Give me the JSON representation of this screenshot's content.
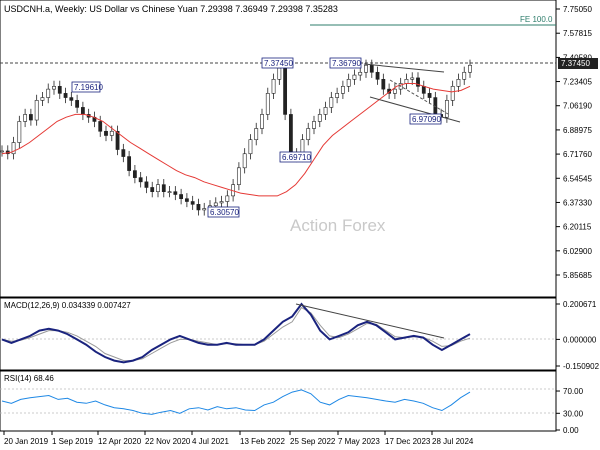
{
  "chart_data": [
    {
      "type": "candlestick",
      "title": "USDCNH.a, Weekly:  US Dollar vs Chinese Yuan  7.29398 7.36949 7.29398 7.35283",
      "watermark": "Action Forex",
      "ylim": [
        5.77,
        7.83
      ],
      "y_ticks": [
        "7.75050",
        "7.57815",
        "7.40580",
        "7.23405",
        "7.06190",
        "6.88975",
        "6.71760",
        "6.54545",
        "6.37330",
        "6.20115",
        "6.02900",
        "5.85685"
      ],
      "current_price_label": "7.37450",
      "fe_label": "FE 100.0",
      "fe_level": 7.668,
      "annotations": [
        "7.19610",
        "7.37450",
        "7.36790",
        "6.30570",
        "6.69710",
        "6.97090"
      ],
      "series": [
        {
          "name": "Price",
          "values": [
            6.74,
            6.72,
            6.8,
            6.95,
            7.0,
            6.96,
            7.1,
            7.12,
            7.18,
            7.2,
            7.15,
            7.12,
            7.1,
            7.05,
            7.0,
            6.98,
            6.95,
            6.88,
            6.85,
            6.88,
            6.75,
            6.7,
            6.6,
            6.55,
            6.52,
            6.48,
            6.45,
            6.5,
            6.45,
            6.45,
            6.43,
            6.4,
            6.38,
            6.36,
            6.32,
            6.33,
            6.35,
            6.37,
            6.38,
            6.42,
            6.5,
            6.62,
            6.72,
            6.82,
            6.9,
            7.0,
            7.15,
            7.25,
            7.33,
            7.0,
            6.72,
            6.7,
            6.82,
            6.9,
            6.95,
            7.0,
            7.05,
            7.12,
            7.15,
            7.2,
            7.25,
            7.28,
            7.3,
            7.35,
            7.3,
            7.25,
            7.18,
            7.15,
            7.18,
            7.22,
            7.25,
            7.26,
            7.2,
            7.15,
            7.12,
            7.0,
            6.98,
            7.1,
            7.2,
            7.25,
            7.3,
            7.35
          ]
        },
        {
          "name": "MA",
          "values": [
            6.72,
            6.73,
            6.76,
            6.8,
            6.85,
            6.9,
            6.95,
            6.98,
            7.0,
            7.0,
            6.98,
            6.95,
            6.9,
            6.85,
            6.8,
            6.76,
            6.72,
            6.68,
            6.64,
            6.6,
            6.57,
            6.55,
            6.52,
            6.5,
            6.48,
            6.46,
            6.44,
            6.43,
            6.42,
            6.42,
            6.42,
            6.45,
            6.5,
            6.58,
            6.68,
            6.78,
            6.85,
            6.9,
            6.95,
            7.0,
            7.05,
            7.1,
            7.15,
            7.2,
            7.22,
            7.22,
            7.2,
            7.18,
            7.17,
            7.16,
            7.17,
            7.2
          ]
        }
      ]
    },
    {
      "type": "line",
      "title": "MACD(12,26,9) 0.034339 0.007427",
      "y_ticks": [
        "0.200671",
        "0.000000",
        "-0.150902"
      ],
      "ylim": [
        -0.17,
        0.23
      ],
      "series": [
        {
          "name": "MACD",
          "values": [
            0.0,
            -0.02,
            0.0,
            0.02,
            0.05,
            0.06,
            0.05,
            0.03,
            0.0,
            -0.03,
            -0.07,
            -0.1,
            -0.12,
            -0.13,
            -0.12,
            -0.1,
            -0.06,
            -0.03,
            0.0,
            0.02,
            0.0,
            -0.02,
            -0.03,
            -0.03,
            -0.02,
            -0.03,
            -0.03,
            -0.03,
            0.0,
            0.05,
            0.1,
            0.13,
            0.2,
            0.14,
            0.05,
            0.0,
            0.02,
            0.04,
            0.08,
            0.1,
            0.08,
            0.04,
            0.0,
            0.01,
            0.02,
            0.01,
            -0.03,
            -0.06,
            -0.03,
            0.0,
            0.03
          ]
        },
        {
          "name": "Signal",
          "values": [
            0.0,
            -0.01,
            -0.005,
            0.01,
            0.03,
            0.05,
            0.05,
            0.04,
            0.02,
            -0.01,
            -0.04,
            -0.08,
            -0.1,
            -0.12,
            -0.12,
            -0.11,
            -0.08,
            -0.05,
            -0.02,
            0.0,
            0.0,
            -0.01,
            -0.02,
            -0.03,
            -0.025,
            -0.025,
            -0.03,
            -0.03,
            -0.01,
            0.03,
            0.07,
            0.1,
            0.18,
            0.15,
            0.08,
            0.02,
            0.01,
            0.03,
            0.06,
            0.09,
            0.085,
            0.05,
            0.015,
            0.01,
            0.015,
            0.012,
            -0.01,
            -0.04,
            -0.035,
            -0.01,
            0.007
          ]
        }
      ]
    },
    {
      "type": "line",
      "title": "RSI(14) 68.46",
      "y_ticks": [
        "70.00",
        "30.00",
        "0.00"
      ],
      "ylim": [
        0,
        100
      ],
      "series": [
        {
          "name": "RSI",
          "values": [
            52,
            48,
            55,
            58,
            60,
            62,
            55,
            57,
            50,
            48,
            52,
            45,
            40,
            38,
            35,
            30,
            28,
            32,
            35,
            30,
            38,
            40,
            36,
            42,
            38,
            40,
            36,
            35,
            45,
            50,
            60,
            68,
            72,
            65,
            50,
            45,
            55,
            62,
            60,
            58,
            55,
            52,
            50,
            55,
            52,
            48,
            40,
            35,
            45,
            58,
            68
          ]
        }
      ]
    }
  ],
  "x_labels": [
    "20 Jan 2019",
    "1 Sep 2019",
    "12 Apr 2020",
    "22 Nov 2020",
    "4 Jul 2021",
    "13 Feb 2022",
    "25 Sep 2022",
    "7 May 2023",
    "17 Dec 2023",
    "28 Jul 2024"
  ]
}
